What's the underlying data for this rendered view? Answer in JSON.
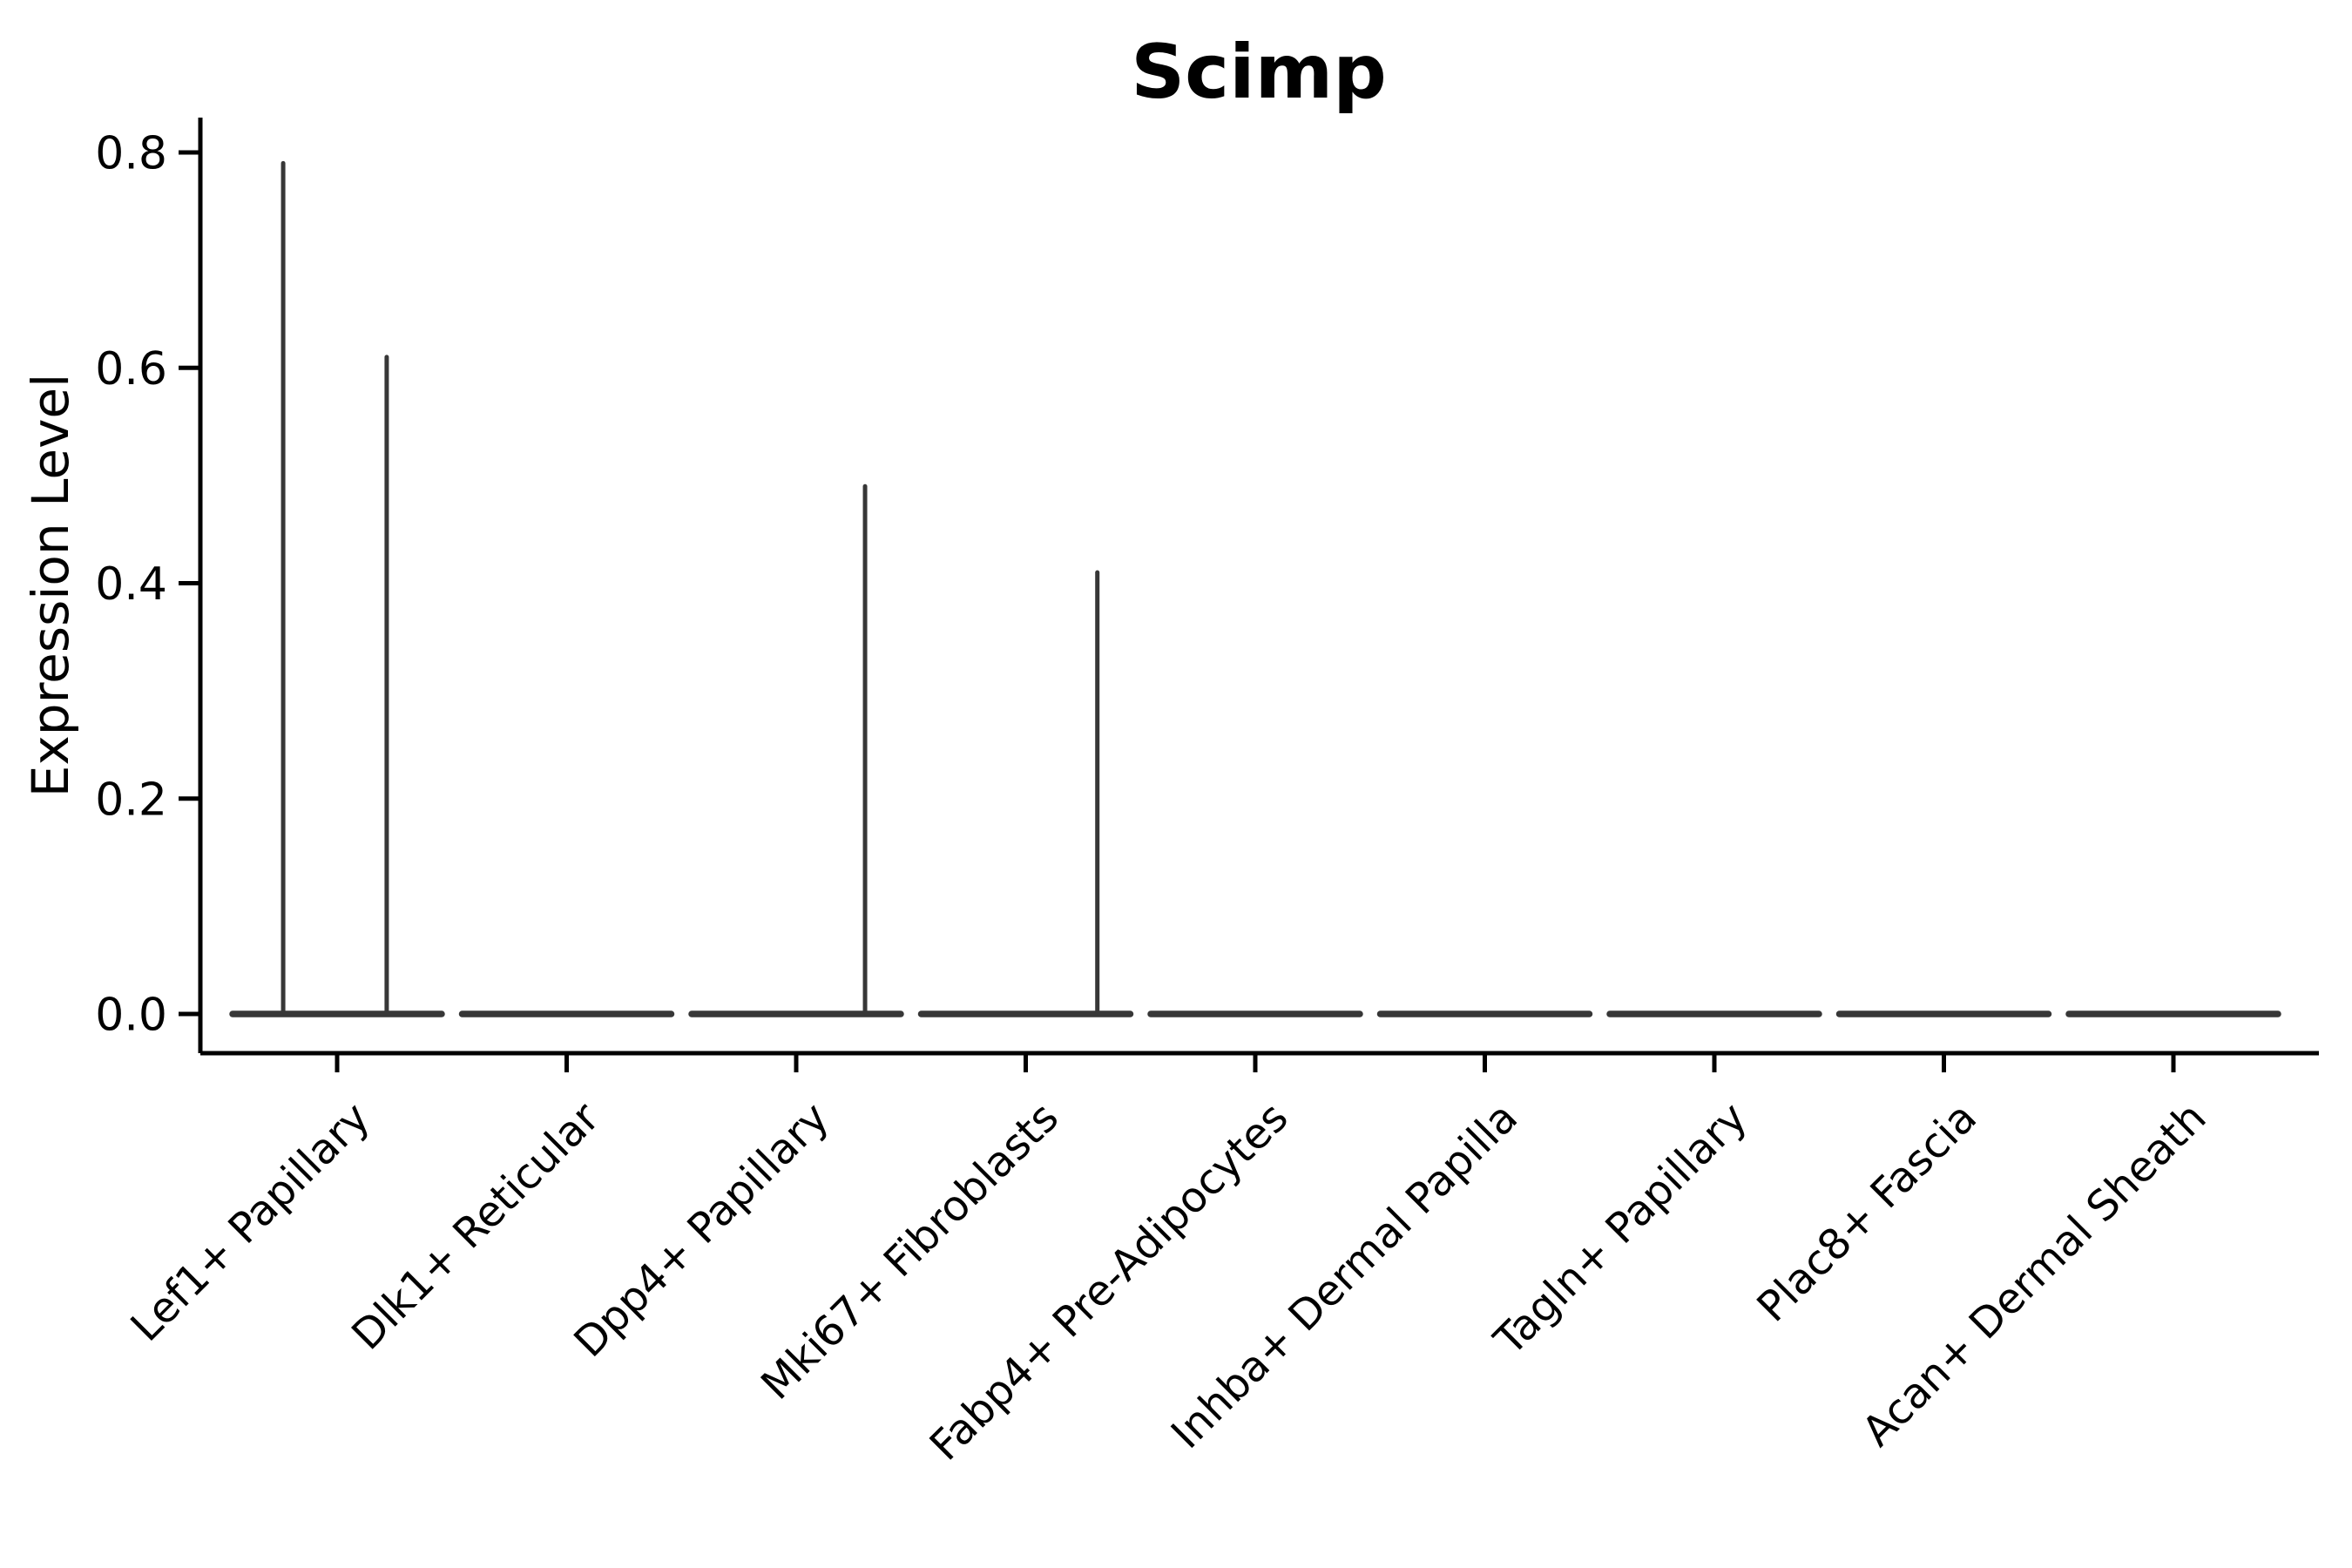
{
  "figure": {
    "background": "#ffffff",
    "axis_color": "#000000",
    "violin_color": "#373737"
  },
  "chart_data": {
    "type": "violin",
    "title": "Scimp",
    "xlabel": "",
    "ylabel": "Expression Level",
    "legend": null,
    "grid": false,
    "y_ticks": [
      "0.0",
      "0.2",
      "0.4",
      "0.6",
      "0.8"
    ],
    "ylim": [
      -0.036,
      0.833
    ],
    "categories": [
      "Lef1+ Papillary",
      "Dlk1+ Reticular",
      "Dpp4+ Papillary",
      "Mki67+ Fibroblasts",
      "Fabp4+ Pre-Adipocytes",
      "Inhba+ Dermal Papilla",
      "Tagln+ Papillary",
      "Plac8+ Fascia",
      "Acan+ Dermal Sheath"
    ],
    "violins": [
      {
        "category": "Lef1+ Papillary",
        "body_value": 0.0,
        "spikes": [
          {
            "offset": -0.235,
            "value": 0.79
          },
          {
            "offset": 0.216,
            "value": 0.61
          }
        ]
      },
      {
        "category": "Dlk1+ Reticular",
        "body_value": 0.0,
        "spikes": []
      },
      {
        "category": "Dpp4+ Papillary",
        "body_value": 0.0,
        "spikes": [
          {
            "offset": 0.3,
            "value": 0.49
          }
        ]
      },
      {
        "category": "Mki67+ Fibroblasts",
        "body_value": 0.0,
        "spikes": [
          {
            "offset": 0.312,
            "value": 0.41
          }
        ]
      },
      {
        "category": "Fabp4+ Pre-Adipocytes",
        "body_value": 0.0,
        "spikes": []
      },
      {
        "category": "Inhba+ Dermal Papilla",
        "body_value": 0.0,
        "spikes": []
      },
      {
        "category": "Tagln+ Papillary",
        "body_value": 0.0,
        "spikes": []
      },
      {
        "category": "Plac8+ Fascia",
        "body_value": 0.0,
        "spikes": []
      },
      {
        "category": "Acan+ Dermal Sheath",
        "body_value": 0.0,
        "spikes": []
      }
    ]
  }
}
